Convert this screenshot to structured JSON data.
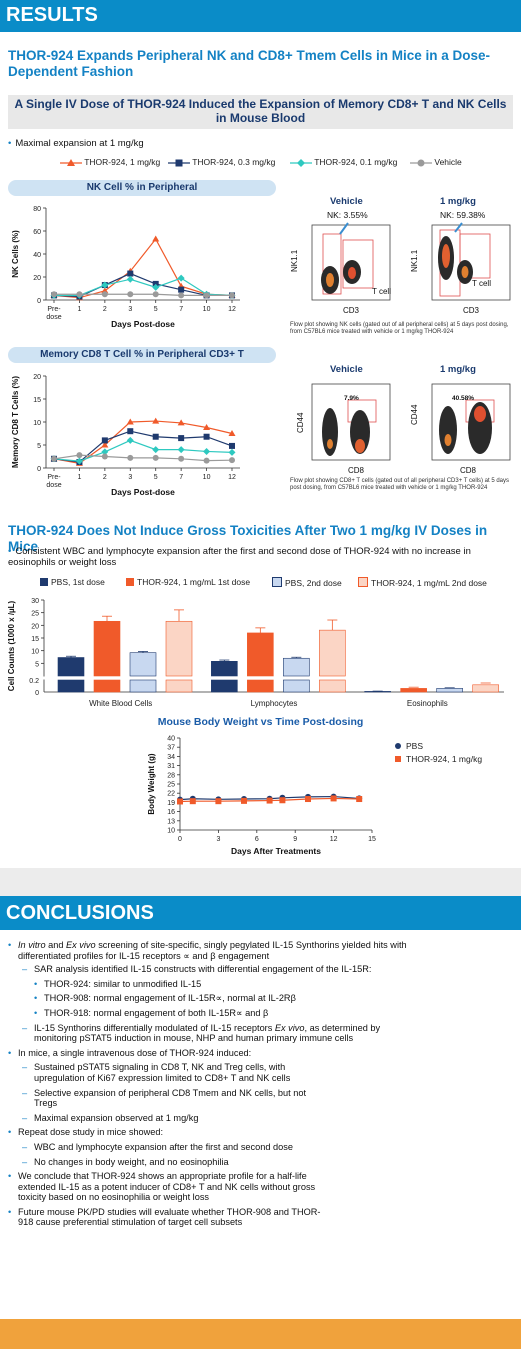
{
  "results_header": "RESULTS",
  "section1_title": "THOR-924 Expands Peripheral NK and CD8+ Tmem Cells in Mice in a Dose-Dependent Fashion",
  "subbar_title": "A Single IV Dose of THOR-924 Induced the Expansion of Memory CD8+ T and NK Cells in Mouse Blood",
  "bullet_max_expansion": "Maximal expansion at 1 mg/kg",
  "legend": [
    {
      "label": "THOR-924, 1 mg/kg",
      "color": "#f05a2a"
    },
    {
      "label": "THOR-924, 0.3 mg/kg",
      "color": "#1f3a6e"
    },
    {
      "label": "THOR-924, 0.1 mg/kg",
      "color": "#2ec9c0"
    },
    {
      "label": "Vehicle",
      "color": "#9a9a9a"
    }
  ],
  "nk_panel_title": "NK Cell % in Peripheral",
  "cd8_panel_title": "Memory CD8 T Cell % in Peripheral CD3+ T",
  "flow_nk": {
    "vehicle_label": "Vehicle",
    "dose_label": "1 mg/kg",
    "vehicle_nk": "NK: 3.55%",
    "dose_nk": "NK: 59.38%",
    "y_axis": "NK1.1",
    "x_axis": "CD3",
    "tcell": "T cell",
    "caption": "Flow plot showing NK cells (gated out of all peripheral cells) at 5 days post dosing, from C57BL6 mice treated with vehicle or 1 mg/kg THOR-924"
  },
  "flow_cd8": {
    "vehicle_label": "Vehicle",
    "dose_label": "1 mg/kg",
    "vehicle_pct": "7.9%",
    "dose_pct": "40.58%",
    "y_axis": "CD44",
    "x_axis": "CD8",
    "caption": "Flow plot showing CD8+ T cells (gated out of all peripheral CD3+ T cells) at 5 days post dosing, from C57BL6 mice treated with vehicle or 1 mg/kg THOR-924"
  },
  "section2_title": "THOR-924 Does Not Induce Gross Toxicities After Two 1 mg/kg IV Doses in Mice",
  "bullet_consistent": "Consistent WBC and lymphocyte expansion after the first and second dose of THOR-924 with no increase in eosinophils or weight loss",
  "body_weight_title": "Mouse Body Weight vs Time Post-dosing",
  "chart_data": [
    {
      "type": "line",
      "title": "",
      "xlabel": "Days Post-dose",
      "ylabel": "NK Cells (%)",
      "categories": [
        "Pre-dose",
        "1",
        "2",
        "3",
        "5",
        "7",
        "10",
        "12"
      ],
      "ylim": [
        0,
        80
      ],
      "yticks": [
        0,
        20,
        40,
        60,
        80
      ],
      "series": [
        {
          "name": "THOR-924, 1 mg/kg",
          "color": "#f05a2a",
          "marker": "triangle",
          "values": [
            4,
            2,
            8,
            25,
            53,
            12,
            5,
            4
          ]
        },
        {
          "name": "THOR-924, 0.3 mg/kg",
          "color": "#1f3a6e",
          "marker": "square",
          "values": [
            4,
            3,
            13,
            23,
            14,
            9,
            4,
            4
          ]
        },
        {
          "name": "THOR-924, 0.1 mg/kg",
          "color": "#2ec9c0",
          "marker": "diamond",
          "values": [
            4,
            4,
            13,
            18,
            11,
            19,
            5,
            4
          ]
        },
        {
          "name": "Vehicle",
          "color": "#9a9a9a",
          "marker": "circle",
          "values": [
            5,
            5,
            5,
            5,
            5,
            4,
            4,
            4
          ]
        }
      ]
    },
    {
      "type": "line",
      "title": "",
      "xlabel": "Days Post-dose",
      "ylabel": "Memory CD8 T Cells (%)",
      "categories": [
        "Pre-dose",
        "1",
        "2",
        "3",
        "5",
        "7",
        "10",
        "12"
      ],
      "ylim": [
        0,
        20
      ],
      "yticks": [
        0,
        5,
        10,
        15,
        20
      ],
      "series": [
        {
          "name": "THOR-924, 1 mg/kg",
          "color": "#f05a2a",
          "marker": "triangle",
          "values": [
            2,
            1,
            5,
            10,
            10.2,
            9.8,
            8.8,
            7.5
          ]
        },
        {
          "name": "THOR-924, 0.3 mg/kg",
          "color": "#1f3a6e",
          "marker": "square",
          "values": [
            2,
            1.3,
            6,
            8,
            6.8,
            6.5,
            6.8,
            4.8
          ]
        },
        {
          "name": "THOR-924, 0.1 mg/kg",
          "color": "#2ec9c0",
          "marker": "diamond",
          "values": [
            2,
            1.5,
            3.5,
            6,
            4,
            4,
            3.6,
            3.4
          ]
        },
        {
          "name": "Vehicle",
          "color": "#9a9a9a",
          "marker": "circle",
          "values": [
            2,
            2.8,
            2.5,
            2.2,
            2.2,
            2,
            1.6,
            1.7
          ]
        }
      ]
    },
    {
      "type": "bar",
      "title": "",
      "xlabel": "",
      "ylabel": "Cell Counts (1000 x /µL)",
      "categories": [
        "White Blood Cells",
        "Lymphocytes",
        "Eosinophils"
      ],
      "yticks": [
        0,
        0.2,
        5,
        10,
        15,
        20,
        25,
        30
      ],
      "ytick_labels": [
        "0",
        "0.2",
        "5",
        "10",
        "15",
        "20",
        "25",
        "30"
      ],
      "series": [
        {
          "name": "PBS, 1st dose",
          "color": "#1f3a6e",
          "values": [
            7.3,
            5.8,
            0.01
          ],
          "errors": [
            0.5,
            0.5,
            0.005
          ]
        },
        {
          "name": "THOR-924, 1 mg/mL 1st dose",
          "color": "#f05a2a",
          "values": [
            21.6,
            17.0,
            0.06
          ],
          "errors": [
            2.0,
            2.0,
            0.02
          ]
        },
        {
          "name": "PBS, 2nd dose",
          "color": "#c8d8f0",
          "values": [
            9.2,
            7.0,
            0.06
          ],
          "errors": [
            0.5,
            0.4,
            0.01
          ]
        },
        {
          "name": "THOR-924, 1 mg/mL 2nd dose",
          "color": "#fbd5c5",
          "values": [
            21.6,
            18.1,
            0.12
          ],
          "errors": [
            4.5,
            4.0,
            0.03
          ]
        }
      ]
    },
    {
      "type": "line",
      "title": "Mouse Body Weight vs Time Post-dosing",
      "xlabel": "Days After Treatments",
      "ylabel": "Body Weight (g)",
      "xlim": [
        0,
        15
      ],
      "xticks": [
        0,
        3,
        6,
        9,
        12,
        15
      ],
      "ylim": [
        10,
        40
      ],
      "yticks": [
        10,
        13,
        16,
        19,
        22,
        25,
        28,
        31,
        34,
        37,
        40
      ],
      "series": [
        {
          "name": "PBS",
          "color": "#1f3a6e",
          "marker": "circle",
          "x": [
            0,
            1,
            3,
            5,
            7,
            8,
            10,
            12,
            14
          ],
          "values": [
            19.9,
            20.2,
            20.0,
            20.1,
            20.2,
            20.5,
            20.8,
            20.9,
            20.3
          ]
        },
        {
          "name": "THOR-924, 1 mg/kg",
          "color": "#f05a2a",
          "marker": "square",
          "x": [
            0,
            1,
            3,
            5,
            7,
            8,
            10,
            12,
            14
          ],
          "values": [
            19.3,
            19.4,
            19.4,
            19.5,
            19.6,
            19.7,
            20.1,
            20.3,
            20.1
          ]
        }
      ]
    }
  ],
  "conclusions_header": "CONCLUSIONS",
  "conclusions": {
    "c1_em1": "In vitro",
    "c1_mid": " and ",
    "c1_em2": "Ex vivo",
    "c1_rest": " screening of site-specific, singly pegylated IL-15 Synthorins yielded hits with differentiated profiles for IL-15 receptors ∝ and β engagement",
    "c1a": "SAR analysis identified IL-15 constructs with differential engagement of the IL-15R:",
    "c1a1": "THOR-924: similar to unmodified IL-15",
    "c1a2": "THOR-908: normal engagement of IL-15R∝, normal at IL-2Rβ",
    "c1a3": "THOR-918: normal engagement of both IL-15R∝ and β",
    "c1b_pre": "IL-15 Synthorins differentially modulated of IL-15 receptors ",
    "c1b_em": "Ex vivo",
    "c1b_post": ", as determined by monitoring pSTAT5 induction in mouse, NHP and human primary immune cells",
    "c2": "In mice, a single intravenous dose of THOR-924 induced:",
    "c2a": "Sustained pSTAT5 signaling in CD8 T, NK and Treg cells, with upregulation of Ki67 expression limited to CD8+ T and NK cells",
    "c2b": "Selective expansion of peripheral CD8 Tmem and NK cells, but not Tregs",
    "c2c": "Maximal expansion observed at 1 mg/kg",
    "c3": "Repeat dose study in mice showed:",
    "c3a": "WBC and lymphocyte expansion after the first and second dose",
    "c3b": "No changes in body weight, and no eosinophilia",
    "c4": "We conclude that THOR-924 shows an appropriate profile for a half-life extended IL-15 as a potent inducer of CD8+ T and NK cells without gross toxicity based on no eosinophilia or weight loss",
    "c5": "Future mouse PK/PD studies will evaluate whether THOR-908 and THOR-918 cause preferential stimulation of target cell subsets"
  }
}
